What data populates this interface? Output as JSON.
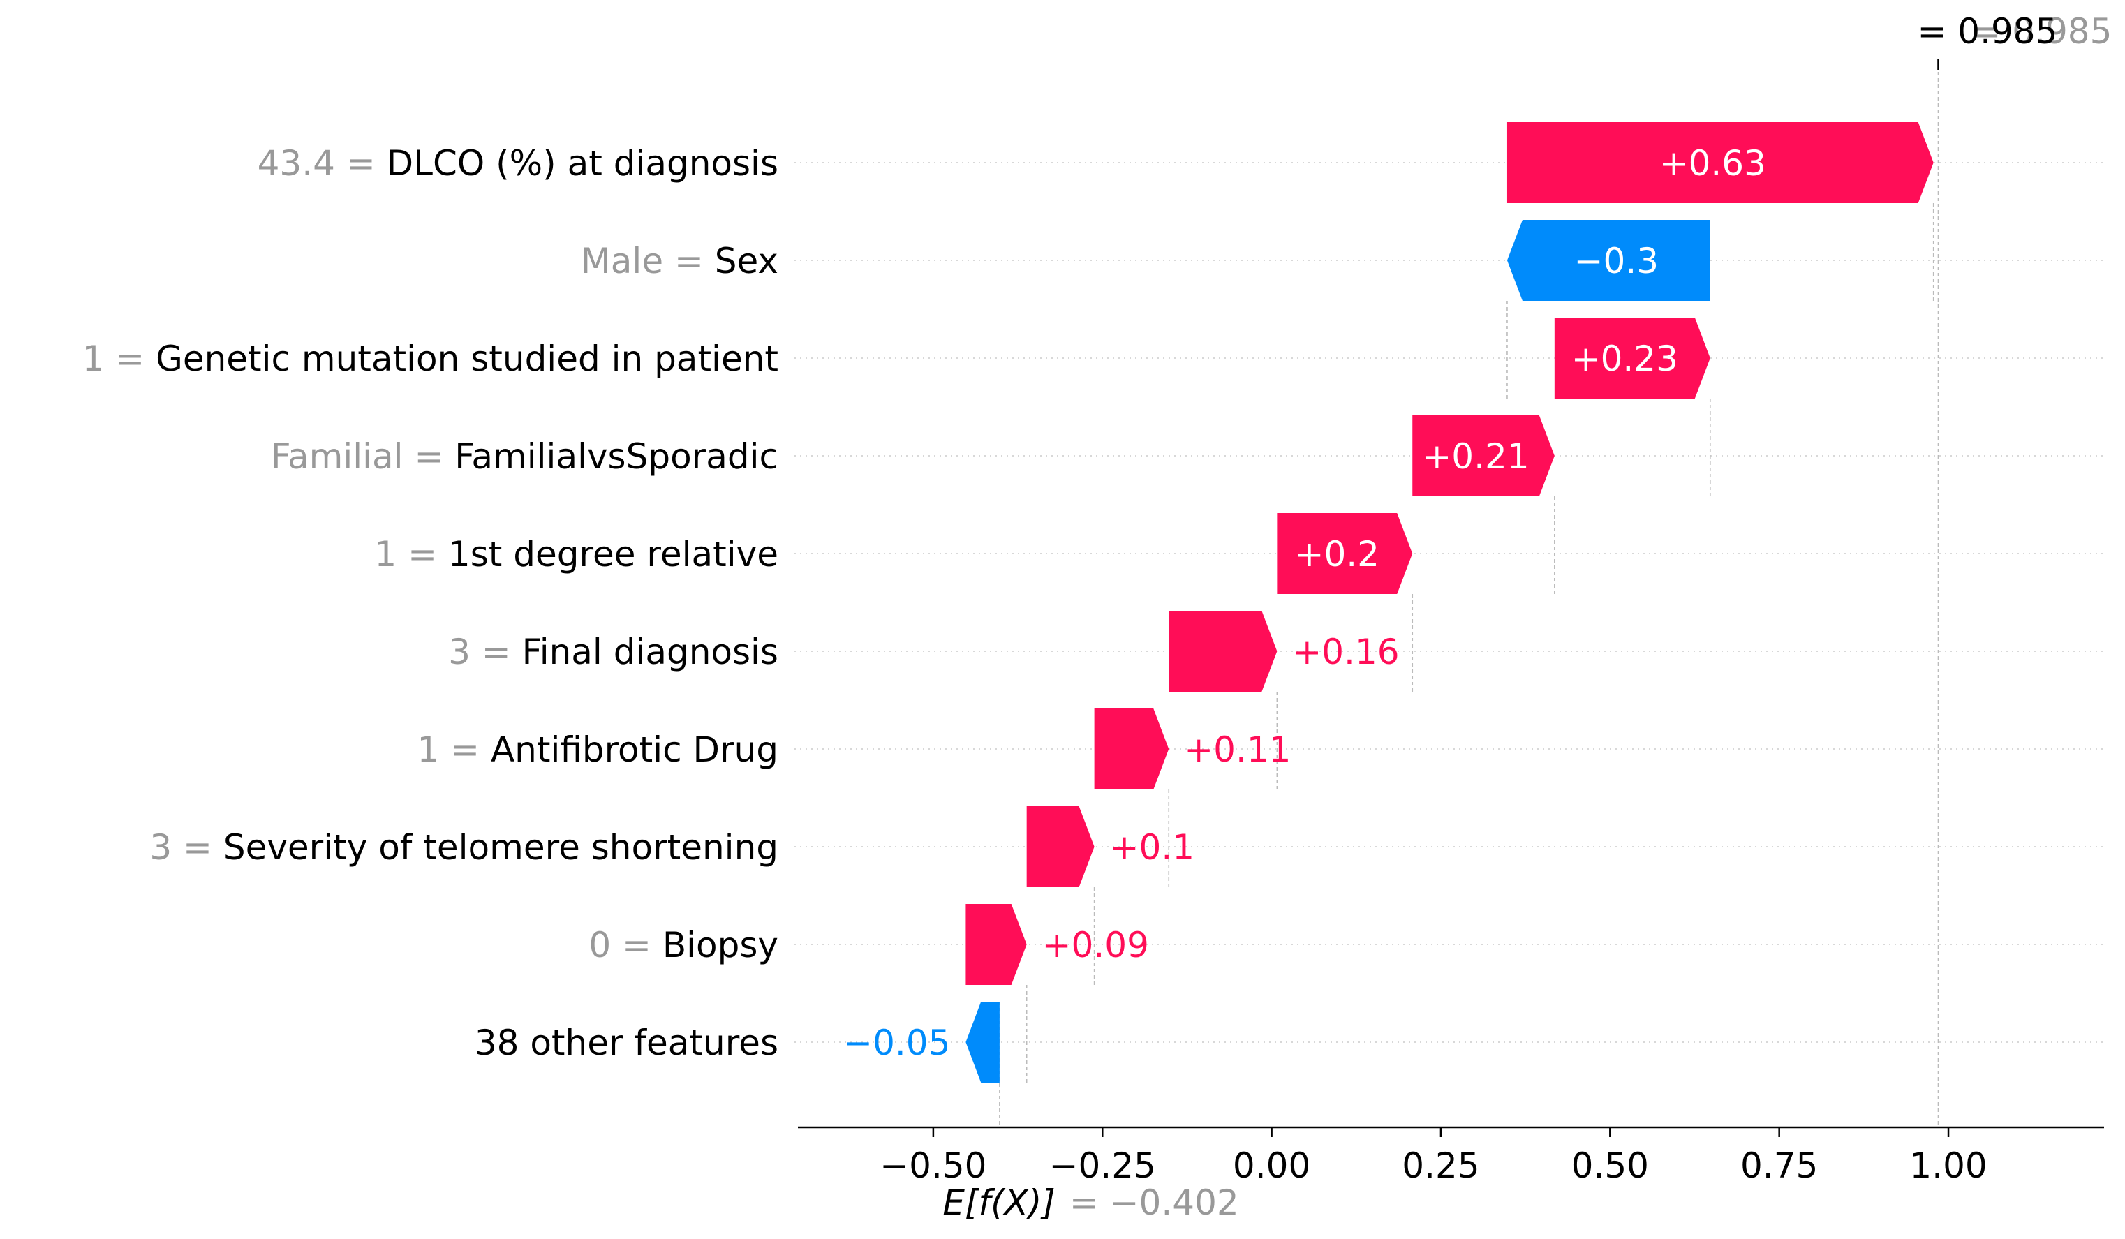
{
  "chart_data": {
    "type": "waterfall",
    "base_value": -0.402,
    "base_value_label": "E[f(X)]",
    "base_value_text": "= −0.402",
    "output_value": 0.985,
    "output_value_text": "= 0.985",
    "output_value_overlap_text": "= 0.985",
    "xlim": [
      -0.7,
      1.23
    ],
    "xticks": [
      -0.5,
      -0.25,
      0.0,
      0.25,
      0.5,
      0.75,
      1.0
    ],
    "xtick_labels": [
      "−0.50",
      "−0.25",
      "0.00",
      "0.25",
      "0.50",
      "0.75",
      "1.00"
    ],
    "features": [
      {
        "value": "43.4",
        "name": "DLCO (%) at diagnosis",
        "shap": 0.63,
        "label": "+0.63"
      },
      {
        "value": "Male",
        "name": "Sex",
        "shap": -0.3,
        "label": "−0.3"
      },
      {
        "value": "1",
        "name": "Genetic mutation studied in patient",
        "shap": 0.23,
        "label": "+0.23"
      },
      {
        "value": "Familial",
        "name": "FamilialvsSporadic",
        "shap": 0.21,
        "label": "+0.21"
      },
      {
        "value": "1",
        "name": "1st degree relative",
        "shap": 0.2,
        "label": "+0.2"
      },
      {
        "value": "3",
        "name": "Final diagnosis",
        "shap": 0.16,
        "label": "+0.16"
      },
      {
        "value": "1",
        "name": "Antifibrotic Drug",
        "shap": 0.11,
        "label": "+0.11"
      },
      {
        "value": "3",
        "name": "Severity of telomere shortening",
        "shap": 0.1,
        "label": "+0.1"
      },
      {
        "value": "0",
        "name": "Biopsy",
        "shap": 0.09,
        "label": "+0.09"
      },
      {
        "value": "",
        "name": "38 other features",
        "shap": -0.05,
        "label": "−0.05"
      }
    ],
    "colors": {
      "positive": "#ff0d57",
      "negative": "#008bfb",
      "inside_text": "#ffffff",
      "feature_value": "#999999",
      "axis": "#000000"
    }
  }
}
